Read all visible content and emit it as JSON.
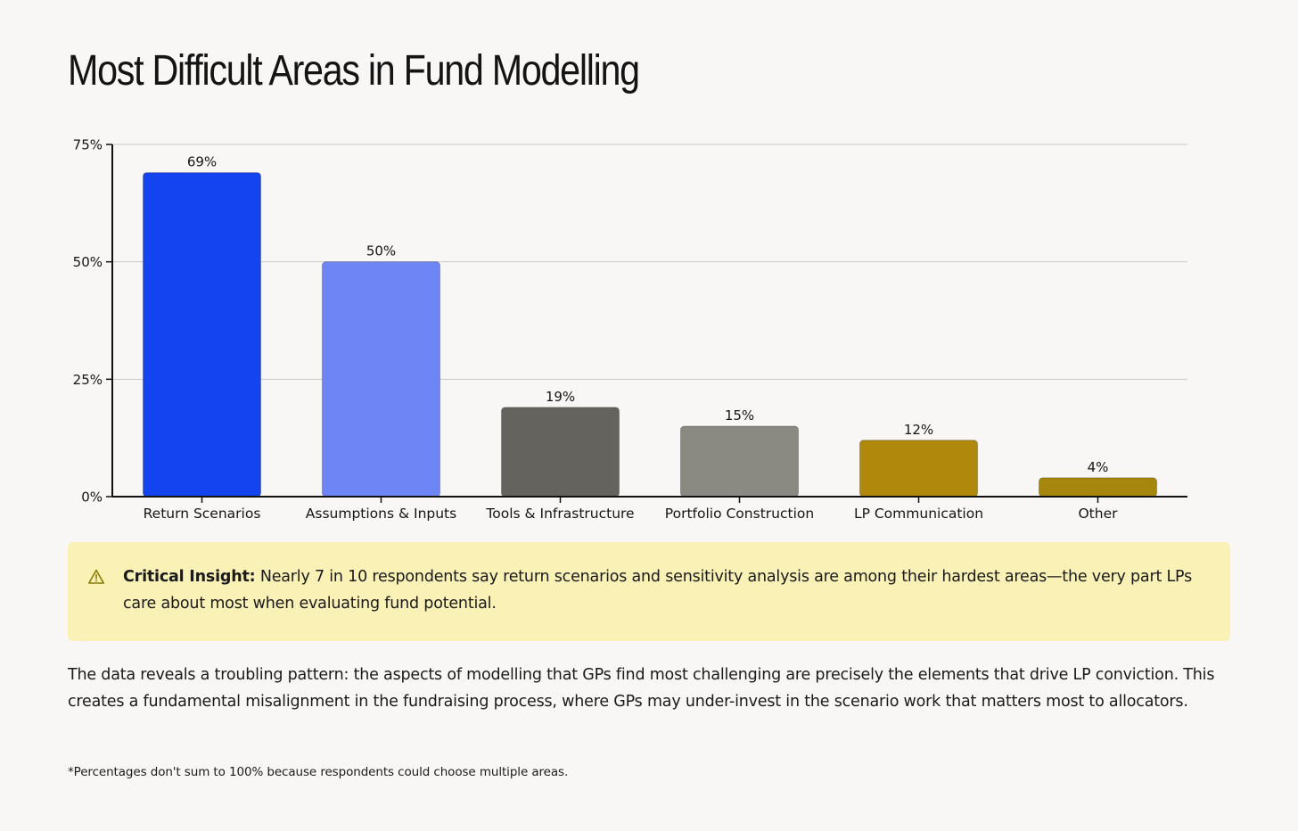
{
  "page": {
    "title": "Most Difficult Areas in Fund Modelling"
  },
  "chart_data": {
    "type": "bar",
    "title": "Most Difficult Areas in Fund Modelling",
    "xlabel": "",
    "ylabel": "",
    "categories": [
      "Return Scenarios",
      "Assumptions & Inputs",
      "Tools & Infrastructure",
      "Portfolio Construction",
      "LP Communication",
      "Other"
    ],
    "values": [
      69,
      50,
      19,
      15,
      12,
      4
    ],
    "value_labels": [
      "69%",
      "50%",
      "19%",
      "15%",
      "12%",
      "4%"
    ],
    "bar_colors": [
      "#1443f0",
      "#6d85f5",
      "#64635d",
      "#8a8a82",
      "#b0880c",
      "#a7860e"
    ],
    "ylim": [
      0,
      75
    ],
    "yticks": [
      0,
      25,
      50,
      75
    ],
    "ytick_labels": [
      "0%",
      "25%",
      "50%",
      "75%"
    ],
    "grid": true,
    "legend": "none"
  },
  "insight": {
    "icon": "warning-icon",
    "label": "Critical Insight:",
    "text": " Nearly 7 in 10 respondents say return scenarios and sensitivity analysis are among their hardest areas—the very part LPs care about most when evaluating fund potential.",
    "background": "#f9f1b6",
    "icon_color": "#8a7a00"
  },
  "body": {
    "paragraph": "The data reveals a troubling pattern: the aspects of modelling that GPs find most challenging are precisely the elements that drive LP conviction. This creates a fundamental misalignment in the fundraising process, where GPs may under-invest in the scenario work that matters most to allocators."
  },
  "footnote": {
    "text": "*Percentages don't sum to 100% because respondents could choose multiple areas."
  }
}
